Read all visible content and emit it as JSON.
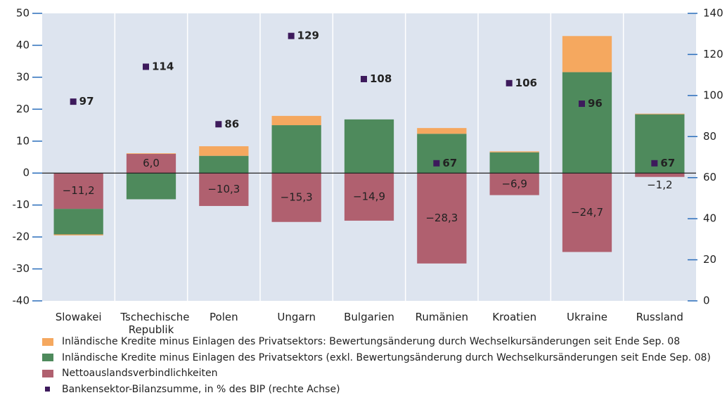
{
  "chart_data": {
    "type": "bar",
    "stacked": true,
    "categories": [
      "Slowakei",
      "Tschechische Republik",
      "Polen",
      "Ungarn",
      "Bulgarien",
      "Rumänien",
      "Kroatien",
      "Ukraine",
      "Russland"
    ],
    "series": [
      {
        "name": "Nettoauslandsverbindlichkeiten",
        "color": "#b0606f",
        "values": [
          -11.2,
          6.0,
          -10.3,
          -15.3,
          -14.9,
          -28.3,
          -6.9,
          -24.7,
          -1.2
        ],
        "value_labels": [
          "−11,2",
          "6,0",
          "−10,3",
          "−15,3",
          "−14,9",
          "−28,3",
          "−6,9",
          "−24,7",
          "−1,2"
        ]
      },
      {
        "name": "Inländische Kredite minus Einlagen des Privatsektors (exkl. Bewertungsänderung durch Wechselkursänderungen seit Ende Sep. 08)",
        "color": "#4e8a5c",
        "values": [
          -8.0,
          -8.2,
          5.4,
          15.0,
          16.8,
          12.3,
          6.5,
          31.6,
          18.4
        ]
      },
      {
        "name": "Inländische Kredite minus Einlagen des Privatsektors: Bewertungsänderung durch Wechselkursänderungen seit Ende Sep. 08",
        "color": "#f5a85f",
        "values": [
          -0.3,
          0.2,
          3.0,
          2.9,
          0,
          1.8,
          0.3,
          11.3,
          0.2
        ]
      },
      {
        "name": "Bankensektor-Bilanzsumme, in % des BIP (rechte Achse)",
        "color": "#3d1a5c",
        "type": "scatter",
        "axis": "y2",
        "values": [
          97,
          114,
          86,
          129,
          108,
          67,
          106,
          96,
          67
        ]
      }
    ],
    "legend_order": [
      2,
      1,
      0,
      3
    ],
    "ylim": [
      -40,
      50
    ],
    "yticks": [
      -40,
      -30,
      -20,
      -10,
      0,
      10,
      20,
      30,
      40,
      50
    ],
    "y2lim": [
      0,
      140
    ],
    "y2ticks": [
      0,
      20,
      40,
      60,
      80,
      100,
      120,
      140
    ],
    "grid": false
  }
}
